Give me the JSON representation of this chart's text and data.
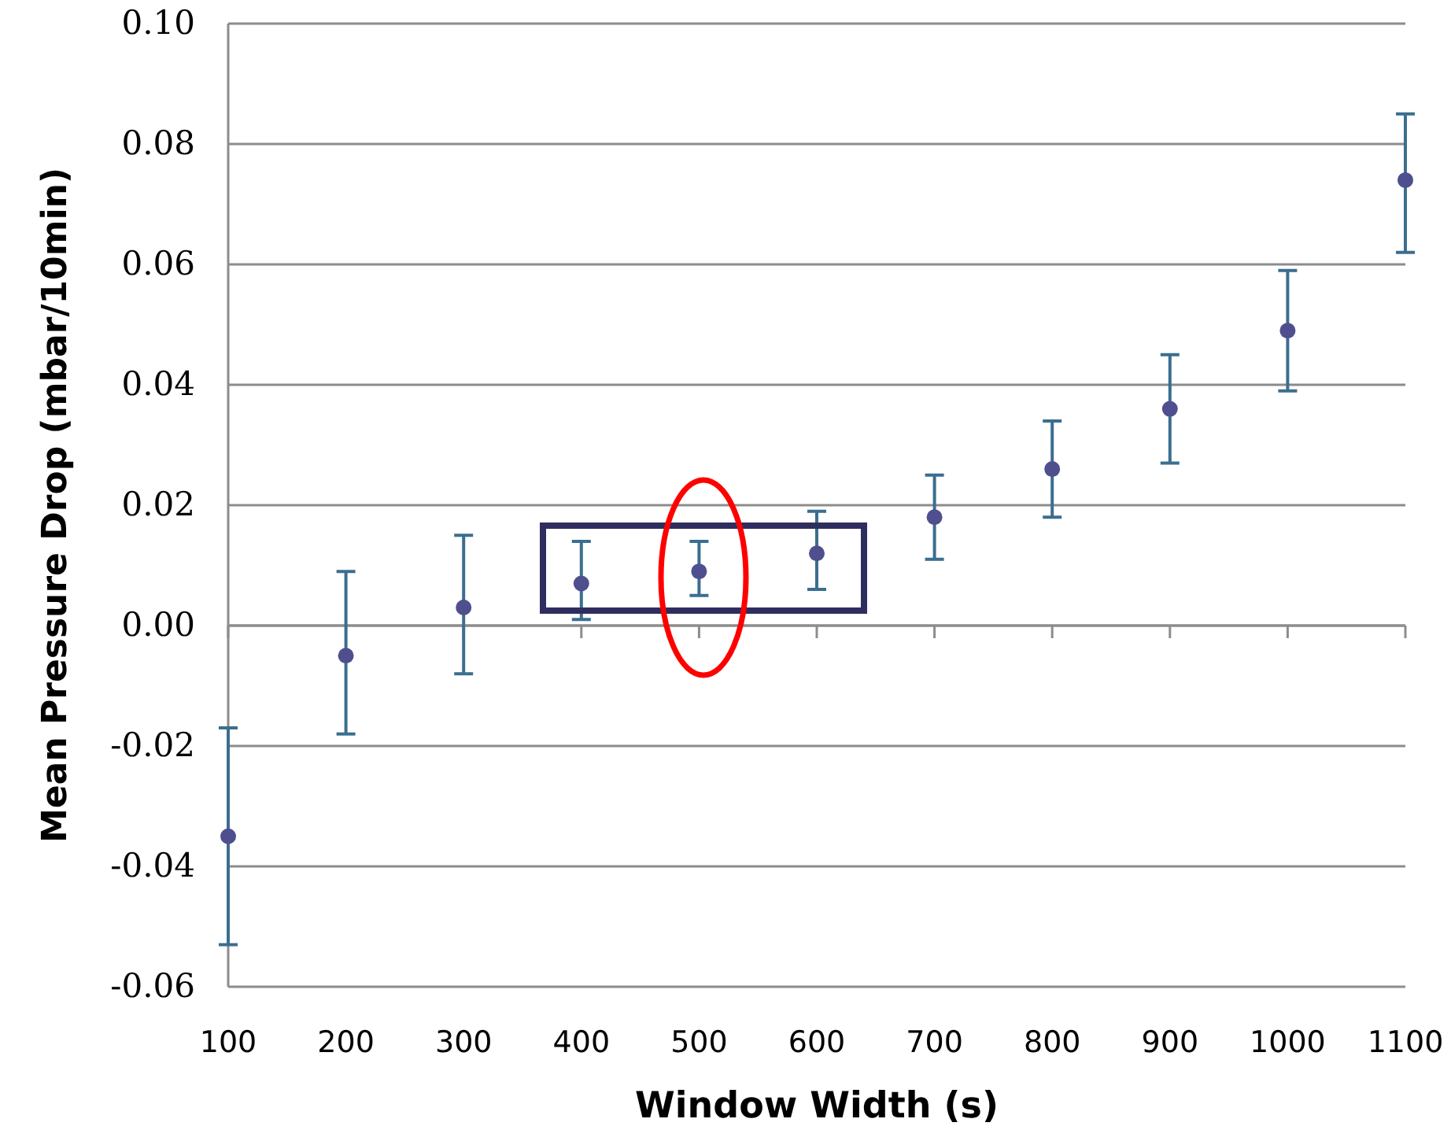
{
  "chart_data": {
    "type": "scatter",
    "xlabel": "Window Width (s)",
    "ylabel": "Mean Pressure Drop (mbar/10min)",
    "x": [
      100,
      200,
      300,
      400,
      500,
      600,
      700,
      800,
      900,
      1000,
      1100
    ],
    "series": [
      {
        "color": "#4f4f8f",
        "values": [
          -0.035,
          -0.005,
          0.003,
          0.007,
          0.009,
          0.012,
          0.018,
          0.026,
          0.036,
          0.049,
          0.074
        ],
        "errors": [
          [
            -0.053,
            -0.017
          ],
          [
            -0.018,
            0.009
          ],
          [
            -0.008,
            0.015
          ],
          [
            0.001,
            0.014
          ],
          [
            0.005,
            0.014
          ],
          [
            0.006,
            0.019
          ],
          [
            0.011,
            0.025
          ],
          [
            0.018,
            0.034
          ],
          [
            0.027,
            0.045
          ],
          [
            0.039,
            0.059
          ],
          [
            0.062,
            0.085
          ]
        ]
      }
    ],
    "xlim": [
      100,
      1100
    ],
    "xticks": [
      100,
      200,
      300,
      400,
      500,
      600,
      700,
      800,
      900,
      1000,
      1100
    ],
    "ylim": [
      -0.06,
      0.1
    ],
    "yticks": [
      {
        "value": -0.06,
        "label": "-0.06"
      },
      {
        "value": -0.04,
        "label": "-0.04"
      },
      {
        "value": -0.02,
        "label": "-0.02"
      },
      {
        "value": 0,
        "label": "0.00"
      },
      {
        "value": 0.02,
        "label": "0.02"
      },
      {
        "value": 0.04,
        "label": "0.04"
      },
      {
        "value": 0.06,
        "label": "0.06"
      },
      {
        "value": 0.08,
        "label": "0.08"
      },
      {
        "value": 0.1,
        "label": "0.10"
      }
    ],
    "grid": "y",
    "marker": "circle"
  }
}
